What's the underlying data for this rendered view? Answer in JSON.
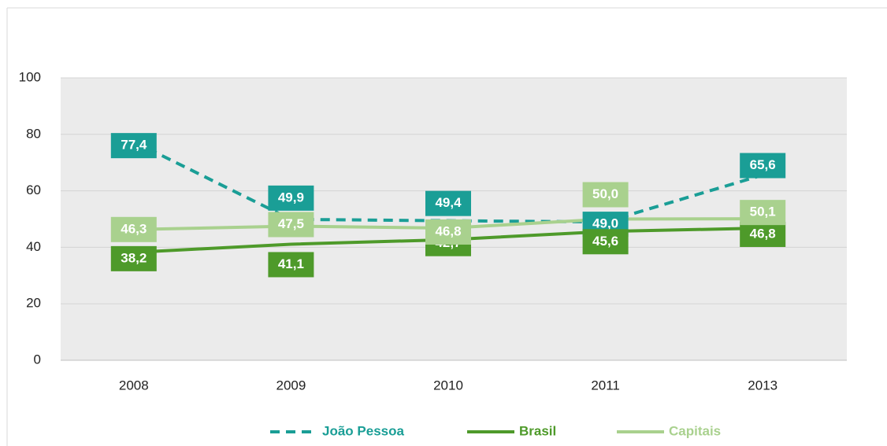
{
  "chart_data": {
    "type": "line",
    "categories": [
      "2008",
      "2009",
      "2010",
      "2011",
      "2013"
    ],
    "series": [
      {
        "name": "João Pessoa",
        "color": "#1a9e96",
        "dashed": true,
        "values": [
          77.4,
          49.9,
          49.4,
          49.0,
          65.6
        ],
        "value_labels": [
          "77,4",
          "49,9",
          "49,4",
          "49,0",
          "65,6"
        ]
      },
      {
        "name": "Brasil",
        "color": "#4e9a2a",
        "dashed": false,
        "values": [
          38.2,
          41.1,
          42.7,
          45.6,
          46.8
        ],
        "value_labels": [
          "38,2",
          "41,1",
          "42,7",
          "45,6",
          "46,8"
        ]
      },
      {
        "name": "Capitais",
        "color": "#a9d18e",
        "dashed": false,
        "values": [
          46.3,
          47.5,
          46.8,
          50.0,
          50.1
        ],
        "value_labels": [
          "46,3",
          "47,5",
          "46,8",
          "50,0",
          "50,1"
        ]
      }
    ],
    "ylim": [
      0,
      100
    ],
    "yticks": [
      0,
      20,
      40,
      60,
      80,
      100
    ],
    "grid": true,
    "legend": "bottom"
  }
}
